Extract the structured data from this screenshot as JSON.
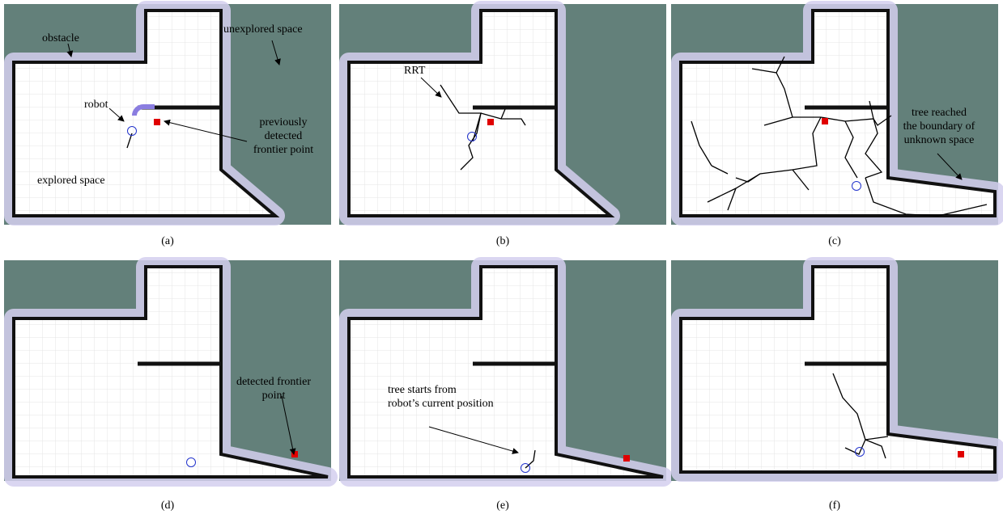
{
  "panels": [
    {
      "caption": "(a)",
      "annotations": [
        {
          "lines": [
            "obstacle"
          ]
        },
        {
          "lines": [
            "unexplored space"
          ]
        },
        {
          "lines": [
            "robot"
          ]
        },
        {
          "lines": [
            "previously",
            "detected",
            "frontier point"
          ]
        },
        {
          "lines": [
            "explored space"
          ]
        }
      ]
    },
    {
      "caption": "(b)",
      "annotations": [
        {
          "lines": [
            "RRT"
          ]
        }
      ]
    },
    {
      "caption": "(c)",
      "annotations": [
        {
          "lines": [
            "tree reached",
            "the boundary of",
            "unknown space"
          ]
        }
      ]
    },
    {
      "caption": "(d)",
      "annotations": [
        {
          "lines": [
            "detected frontier",
            "point"
          ]
        }
      ]
    },
    {
      "caption": "(e)",
      "annotations": [
        {
          "lines": [
            "tree starts from",
            "robot’s current position"
          ]
        }
      ]
    },
    {
      "caption": "(f)",
      "annotations": []
    }
  ]
}
